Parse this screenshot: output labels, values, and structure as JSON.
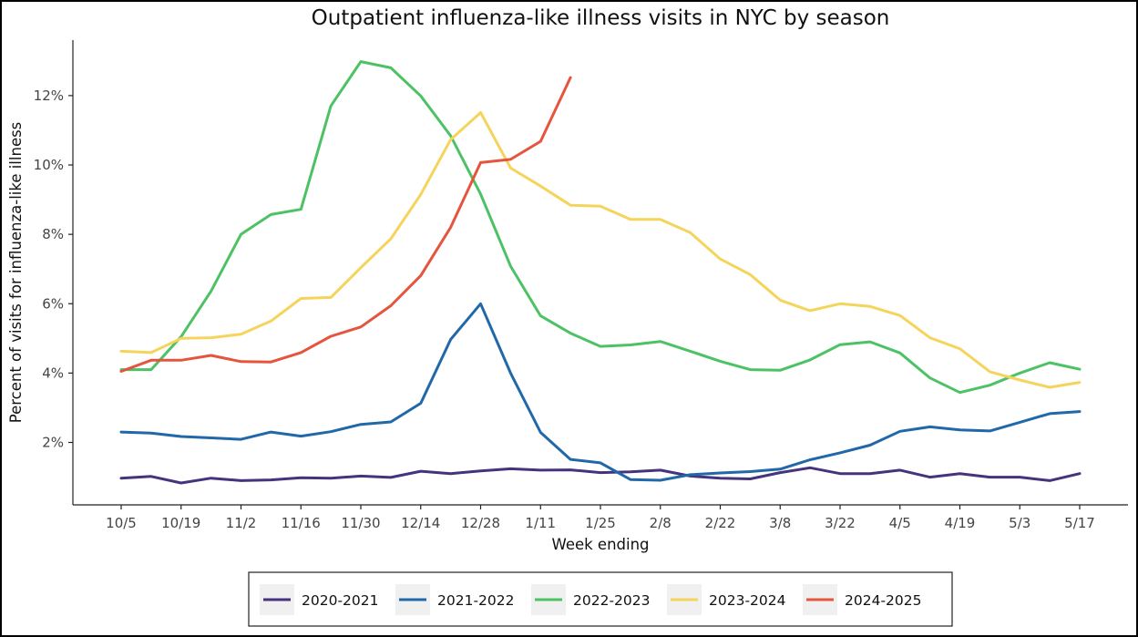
{
  "chart_data": {
    "type": "line",
    "title": "Outpatient influenza-like illness visits in NYC by season",
    "xlabel": "Week ending",
    "ylabel": "Percent of visits for influenza-like illness",
    "x_tick_labels": [
      "10/5",
      "10/19",
      "11/2",
      "11/16",
      "11/30",
      "12/14",
      "12/28",
      "1/11",
      "1/25",
      "2/8",
      "2/22",
      "3/8",
      "3/22",
      "4/5",
      "4/19",
      "5/3",
      "5/17"
    ],
    "y_ticks": [
      2,
      4,
      6,
      8,
      10,
      12
    ],
    "y_tick_labels": [
      "2%",
      "4%",
      "6%",
      "8%",
      "10%",
      "12%"
    ],
    "ylim": [
      0.2,
      13.6
    ],
    "grid": false,
    "legend_position": "bottom",
    "series": [
      {
        "name": "2020-2021",
        "color": "#45337d",
        "values": [
          0.97,
          1.02,
          0.83,
          0.97,
          0.9,
          0.92,
          0.98,
          0.97,
          1.03,
          0.99,
          1.17,
          1.1,
          1.18,
          1.24,
          1.2,
          1.21,
          1.13,
          1.15,
          1.2,
          1.03,
          0.97,
          0.95,
          1.13,
          1.27,
          1.1,
          1.1,
          1.2,
          1.0,
          1.1,
          1.0,
          1.0,
          0.9,
          1.1
        ]
      },
      {
        "name": "2021-2022",
        "color": "#2168a9",
        "values": [
          2.3,
          2.27,
          2.17,
          2.13,
          2.09,
          2.3,
          2.18,
          2.31,
          2.52,
          2.59,
          3.13,
          4.97,
          6.0,
          4.0,
          2.29,
          1.51,
          1.41,
          0.93,
          0.91,
          1.07,
          1.12,
          1.16,
          1.23,
          1.5,
          1.7,
          1.92,
          2.32,
          2.45,
          2.36,
          2.33,
          2.58,
          2.83,
          2.89
        ]
      },
      {
        "name": "2022-2023",
        "color": "#4cc265",
        "values": [
          4.1,
          4.1,
          5.05,
          6.36,
          8.0,
          8.57,
          8.72,
          11.7,
          12.98,
          12.8,
          11.99,
          10.84,
          9.16,
          7.08,
          5.65,
          5.15,
          4.77,
          4.81,
          4.91,
          4.63,
          4.34,
          4.1,
          4.08,
          4.38,
          4.82,
          4.9,
          4.58,
          3.86,
          3.44,
          3.65,
          4.0,
          4.3,
          4.11
        ]
      },
      {
        "name": "2023-2024",
        "color": "#f5d45c",
        "values": [
          4.63,
          4.59,
          5.0,
          5.02,
          5.12,
          5.5,
          6.15,
          6.18,
          7.04,
          7.87,
          9.15,
          10.73,
          11.51,
          9.91,
          9.39,
          8.84,
          8.81,
          8.43,
          8.43,
          8.05,
          7.29,
          6.84,
          6.1,
          5.8,
          6.0,
          5.92,
          5.66,
          5.02,
          4.7,
          4.04,
          3.8,
          3.59,
          3.73
        ]
      },
      {
        "name": "2024-2025",
        "color": "#e5553d",
        "values": [
          4.05,
          4.37,
          4.37,
          4.51,
          4.33,
          4.32,
          4.59,
          5.06,
          5.33,
          5.94,
          6.81,
          8.2,
          10.07,
          10.16,
          10.68,
          12.52
        ]
      }
    ]
  }
}
